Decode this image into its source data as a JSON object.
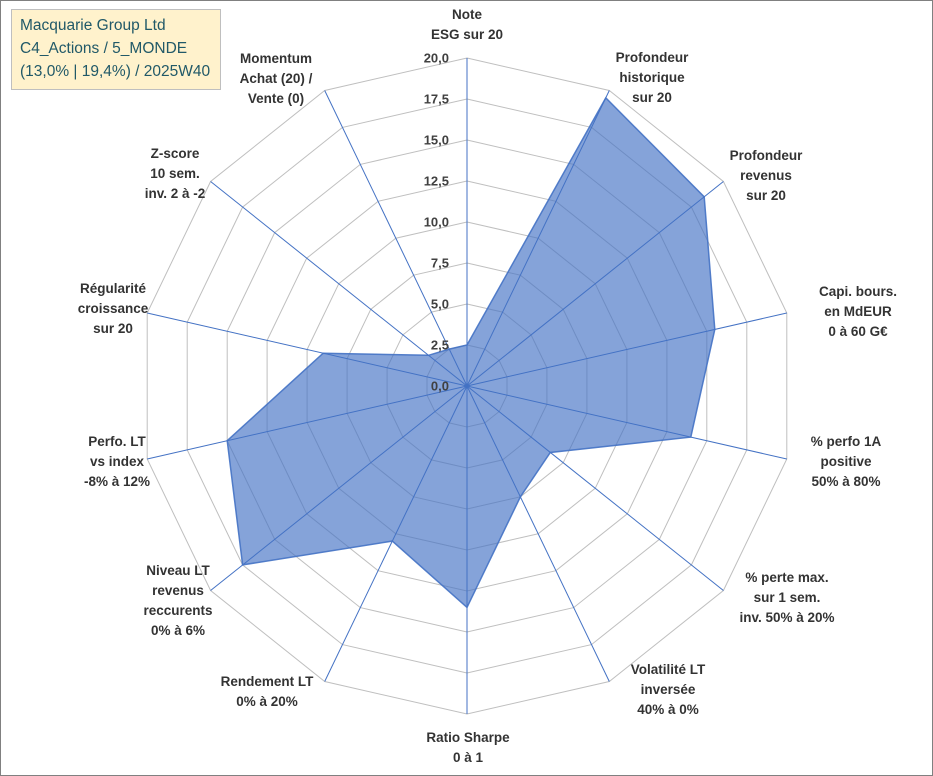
{
  "title_box": {
    "line1": "Macquarie Group Ltd",
    "line2": "C4_Actions / 5_MONDE",
    "line3": "(13,0% | 19,4%) / 2025W40",
    "background": "#FFF2CC",
    "text_color": "#215968"
  },
  "chart_data": {
    "type": "radar",
    "title": "",
    "r_axis": {
      "min": 0,
      "max": 20,
      "step": 2.5,
      "tick_labels": [
        "0,0",
        "2,5",
        "5,0",
        "7,5",
        "10,0",
        "12,5",
        "15,0",
        "17,5",
        "20,0"
      ]
    },
    "axes": [
      {
        "label": "Note ESG sur 20",
        "lines": [
          "Note",
          "ESG sur 20"
        ]
      },
      {
        "label": "Profondeur historique sur 20",
        "lines": [
          "Profondeur",
          "historique",
          "sur 20"
        ]
      },
      {
        "label": "Profondeur revenus sur 20",
        "lines": [
          "Profondeur",
          "revenus",
          "sur 20"
        ]
      },
      {
        "label": "Capi. bours. en MdEUR 0 à 60 G€",
        "lines": [
          "Capi. bours.",
          "en MdEUR",
          "0 à 60 G€"
        ]
      },
      {
        "label": "% perfo 1A positive 50% à 80%",
        "lines": [
          "% perfo 1A",
          "positive",
          "50% à 80%"
        ]
      },
      {
        "label": "% perte max. sur 1 sem. inv. 50% à 20%",
        "lines": [
          "% perte max.",
          "sur 1 sem.",
          "inv. 50% à 20%"
        ]
      },
      {
        "label": "Volatilité LT inversée 40% à 0%",
        "lines": [
          "Volatilité LT",
          "inversée",
          "40% à 0%"
        ]
      },
      {
        "label": "Ratio Sharpe 0 à 1",
        "lines": [
          "Ratio Sharpe",
          "0 à 1"
        ]
      },
      {
        "label": "Rendement LT 0% à 20%",
        "lines": [
          "Rendement LT",
          "0% à 20%"
        ]
      },
      {
        "label": "Niveau LT revenus reccurents 0% à 6%",
        "lines": [
          "Niveau LT",
          "revenus",
          "reccurents",
          "0% à 6%"
        ]
      },
      {
        "label": "Perfo. LT vs index -8% à 12%",
        "lines": [
          "Perfo. LT",
          "vs index",
          "-8% à 12%"
        ]
      },
      {
        "label": "Régularité croissance sur 20",
        "lines": [
          "Régularité",
          "croissance",
          "sur 20"
        ]
      },
      {
        "label": "Z-score 10 sem. inv. 2 à -2",
        "lines": [
          "Z-score",
          "10 sem.",
          "inv. 2 à -2"
        ]
      },
      {
        "label": "Momentum Achat (20) / Vente (0)",
        "lines": [
          "Momentum",
          "Achat (20) /",
          "Vente (0)"
        ]
      }
    ],
    "series": [
      {
        "values": [
          2.5,
          19.5,
          18.5,
          15.5,
          14.0,
          6.5,
          7.5,
          13.5,
          10.5,
          17.5,
          15.0,
          9.0,
          3.0,
          2.5
        ]
      }
    ],
    "colors": {
      "fill": "#4472C4",
      "fill_opacity": 0.65,
      "stroke": "#4472C4",
      "spoke": "#4472C4",
      "grid": "#BFBFBF",
      "tick_text": "#404040",
      "label_text": "#333333"
    }
  }
}
